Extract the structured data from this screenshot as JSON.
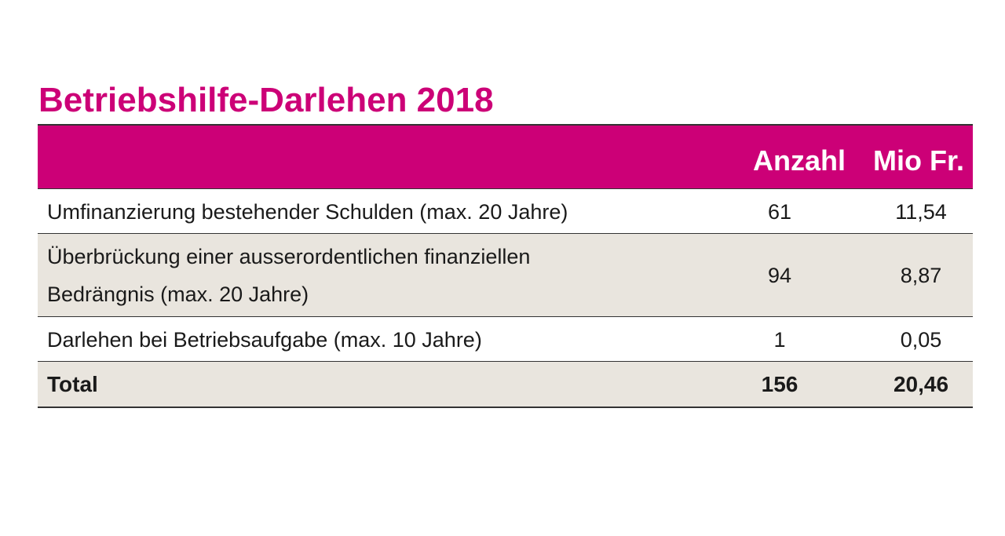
{
  "title": "Betriebshilfe-Darlehen 2018",
  "colors": {
    "accent": "#cc0077",
    "row_shade": "#e9e5de",
    "rule": "#333333"
  },
  "table": {
    "headers": {
      "label": "",
      "anzahl": "Anzahl",
      "mio": "Mio Fr."
    },
    "rows": [
      {
        "label_lines": [
          "Umfinanzierung bestehender Schulden (max. 20 Jahre)"
        ],
        "anzahl": "61",
        "mio": "11,54"
      },
      {
        "label_lines": [
          "Überbrückung einer ausserordentlichen finanziellen",
          "Bedrängnis (max. 20 Jahre)"
        ],
        "anzahl": "94",
        "mio": "8,87"
      },
      {
        "label_lines": [
          "Darlehen bei Betriebsaufgabe (max. 10 Jahre)"
        ],
        "anzahl": "1",
        "mio": "0,05"
      }
    ],
    "total": {
      "label": "Total",
      "anzahl": "156",
      "mio": "20,46"
    }
  }
}
